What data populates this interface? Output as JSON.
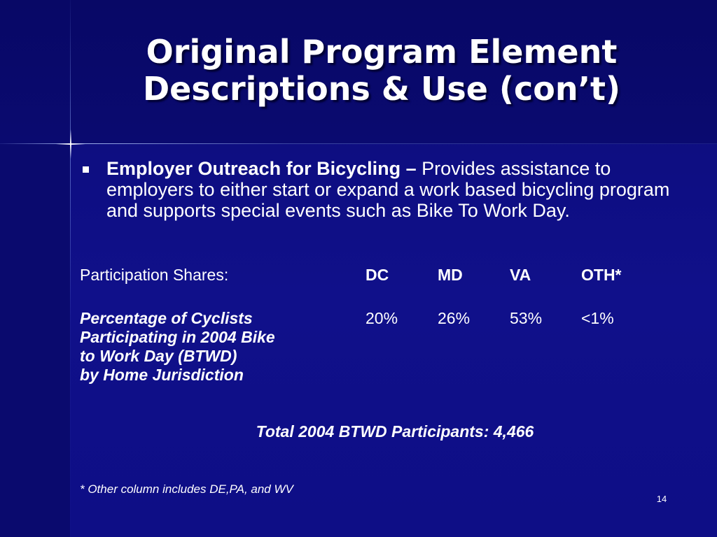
{
  "slide": {
    "title_line1": "Original Program Element",
    "title_line2": "Descriptions & Use (con’t)",
    "bullet": {
      "lead": "Employer Outreach for Bicycling –",
      "text": " Provides assistance to employers to either start or expand a work based bicycling program and supports special events such as Bike To Work Day."
    },
    "table": {
      "header_label": "Participation Shares:",
      "columns": [
        "DC",
        "MD",
        "VA",
        "OTH*"
      ],
      "row_label_lines": [
        "Percentage of Cyclists",
        "Participating in 2004 Bike",
        "to Work Day (BTWD)",
        "by Home Jurisdiction"
      ],
      "values": [
        "20%",
        "26%",
        "53%",
        "<1%"
      ]
    },
    "total": "Total 2004 BTWD Participants: 4,466",
    "footnote": "* Other column includes DE,PA, and WV",
    "page_number": "14"
  }
}
